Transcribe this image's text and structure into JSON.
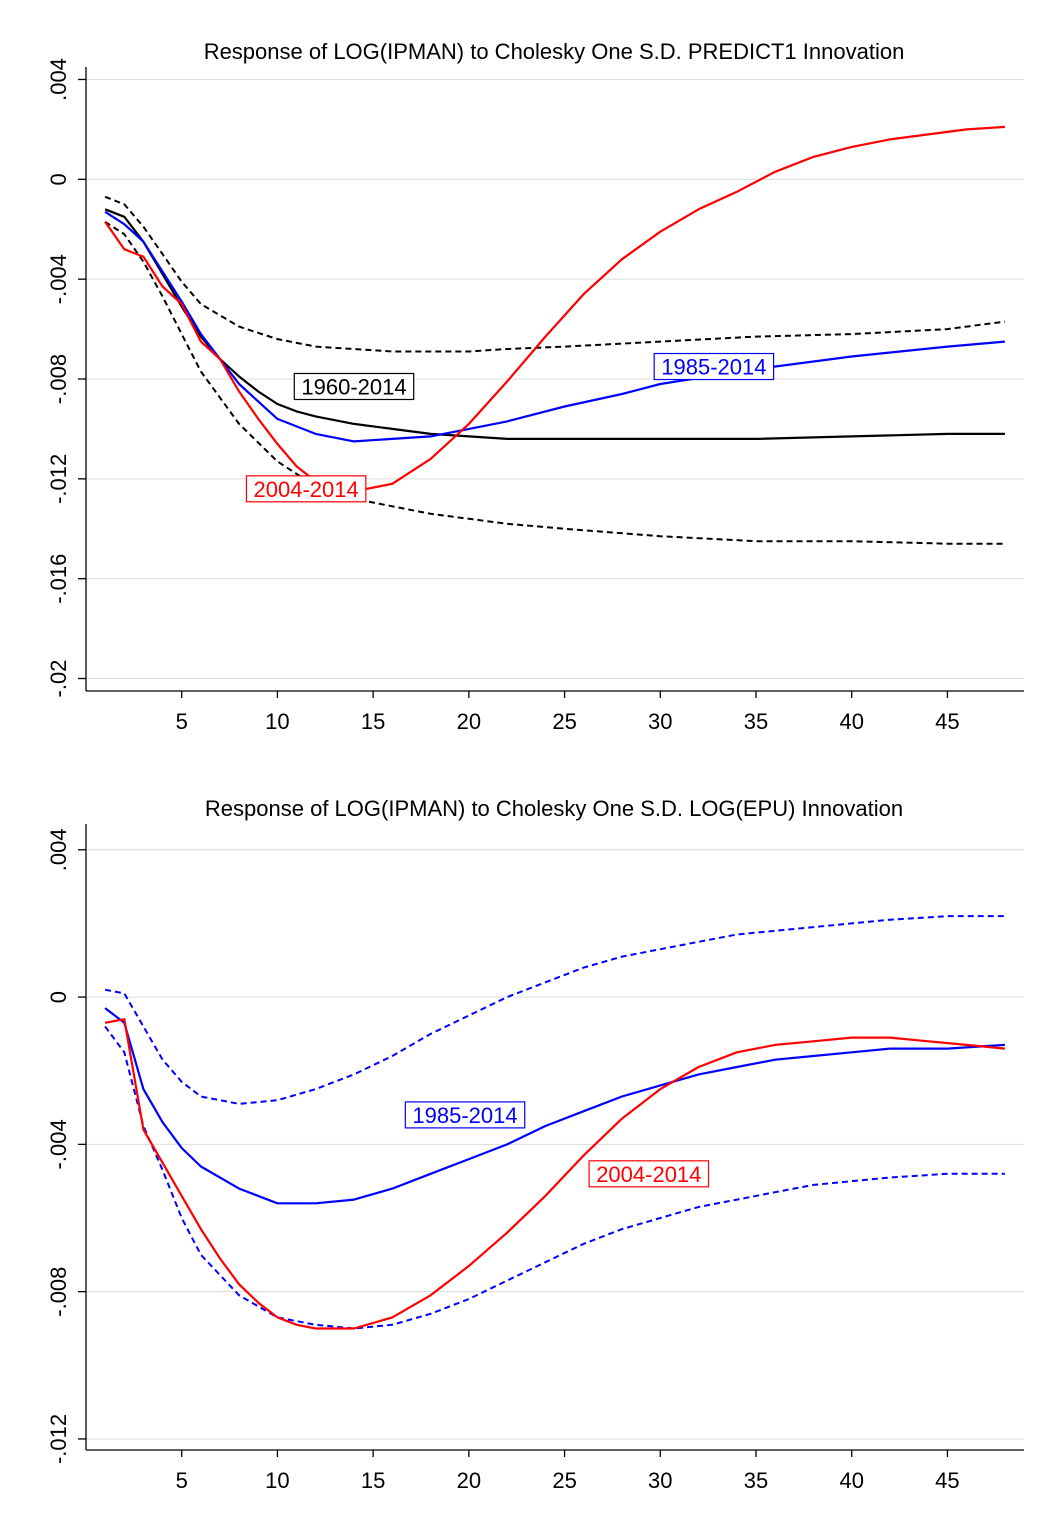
{
  "chart_data": [
    {
      "type": "line",
      "title": "Response of LOG(IPMAN) to Cholesky One S.D. PREDICT1 Innovation",
      "xlabel": "",
      "ylabel": "",
      "xlim": [
        0,
        49
      ],
      "ylim": [
        -0.0205,
        0.0045
      ],
      "x_ticks": [
        5,
        10,
        15,
        20,
        25,
        30,
        35,
        40,
        45
      ],
      "y_ticks": [
        0.004,
        0,
        -0.004,
        -0.008,
        -0.012,
        -0.016,
        -0.02
      ],
      "y_tick_labels": [
        ".004",
        "0",
        "-.004",
        "-.008",
        "-.012",
        "-.016",
        "-.02"
      ],
      "grid": "horizontal",
      "series": [
        {
          "name": "1960-2014",
          "color": "#000000",
          "style": "solid",
          "x": [
            1,
            2,
            3,
            4,
            5,
            6,
            7,
            8,
            9,
            10,
            11,
            12,
            14,
            16,
            18,
            20,
            22,
            25,
            30,
            35,
            40,
            45,
            48
          ],
          "y": [
            -0.0012,
            -0.0015,
            -0.0025,
            -0.0038,
            -0.0051,
            -0.0063,
            -0.0072,
            -0.0079,
            -0.0085,
            -0.009,
            -0.0093,
            -0.0095,
            -0.0098,
            -0.01,
            -0.0102,
            -0.0103,
            -0.0104,
            -0.0104,
            -0.0104,
            -0.0104,
            -0.0103,
            -0.0102,
            -0.0102
          ]
        },
        {
          "name": "",
          "color": "#000000",
          "style": "dashed",
          "x": [
            1,
            2,
            3,
            4,
            5,
            6,
            8,
            10,
            12,
            14,
            16,
            18,
            20,
            22,
            25,
            30,
            35,
            40,
            45,
            48
          ],
          "y": [
            -0.0007,
            -0.001,
            -0.0019,
            -0.003,
            -0.0041,
            -0.005,
            -0.0059,
            -0.0064,
            -0.0067,
            -0.0068,
            -0.0069,
            -0.0069,
            -0.0069,
            -0.0068,
            -0.0067,
            -0.0065,
            -0.0063,
            -0.0062,
            -0.006,
            -0.0057
          ]
        },
        {
          "name": "",
          "color": "#000000",
          "style": "dashed",
          "x": [
            1,
            2,
            3,
            4,
            5,
            6,
            8,
            10,
            12,
            14,
            16,
            18,
            20,
            22,
            25,
            30,
            35,
            40,
            45,
            48
          ],
          "y": [
            -0.0017,
            -0.0022,
            -0.0033,
            -0.0047,
            -0.0062,
            -0.0077,
            -0.0098,
            -0.0113,
            -0.0123,
            -0.0128,
            -0.0131,
            -0.0134,
            -0.0136,
            -0.0138,
            -0.014,
            -0.0143,
            -0.0145,
            -0.0145,
            -0.0146,
            -0.0146
          ]
        },
        {
          "name": "1985-2014",
          "color": "#0000ff",
          "style": "solid",
          "x": [
            1,
            2,
            3,
            4,
            5,
            6,
            8,
            10,
            12,
            14,
            16,
            18,
            20,
            22,
            25,
            28,
            30,
            35,
            40,
            45,
            48
          ],
          "y": [
            -0.0013,
            -0.0018,
            -0.0025,
            -0.0037,
            -0.0049,
            -0.0062,
            -0.0082,
            -0.0096,
            -0.0102,
            -0.0105,
            -0.0104,
            -0.0103,
            -0.01,
            -0.0097,
            -0.0091,
            -0.0086,
            -0.0082,
            -0.0076,
            -0.0071,
            -0.0067,
            -0.0065
          ]
        },
        {
          "name": "2004-2014",
          "color": "#ff0000",
          "style": "solid",
          "x": [
            1,
            2,
            3,
            4,
            5,
            6,
            7,
            8,
            9,
            10,
            11,
            12,
            14,
            16,
            18,
            20,
            22,
            24,
            26,
            28,
            30,
            32,
            34,
            36,
            38,
            40,
            42,
            44,
            46,
            48
          ],
          "y": [
            -0.0017,
            -0.0028,
            -0.0031,
            -0.0043,
            -0.005,
            -0.0065,
            -0.0072,
            -0.0085,
            -0.0096,
            -0.0106,
            -0.0115,
            -0.0121,
            -0.0125,
            -0.0122,
            -0.0112,
            -0.0098,
            -0.0081,
            -0.0063,
            -0.0046,
            -0.0032,
            -0.0021,
            -0.0012,
            -0.0005,
            0.0003,
            0.0009,
            0.0013,
            0.0016,
            0.0018,
            0.002,
            0.0021
          ]
        }
      ],
      "annotations": [
        {
          "text": "1960-2014",
          "x": 14,
          "y": -0.0083,
          "color": "#000000"
        },
        {
          "text": "1985-2014",
          "x": 32.8,
          "y": -0.0075,
          "color": "#0000ff"
        },
        {
          "text": "2004-2014",
          "x": 11.5,
          "y": -0.0124,
          "color": "#ff0000"
        }
      ]
    },
    {
      "type": "line",
      "title": "Response of LOG(IPMAN) to Cholesky One S.D. LOG(EPU) Innovation",
      "xlabel": "",
      "ylabel": "",
      "xlim": [
        0,
        49
      ],
      "ylim": [
        -0.0123,
        0.0047
      ],
      "x_ticks": [
        5,
        10,
        15,
        20,
        25,
        30,
        35,
        40,
        45
      ],
      "y_ticks": [
        0.004,
        0,
        -0.004,
        -0.008,
        -0.012
      ],
      "y_tick_labels": [
        ".004",
        "0",
        "-.004",
        "-.008",
        "-.012"
      ],
      "grid": "horizontal",
      "series": [
        {
          "name": "1985-2014",
          "color": "#0000ff",
          "style": "solid",
          "x": [
            1,
            2,
            3,
            4,
            5,
            6,
            8,
            10,
            12,
            14,
            16,
            18,
            20,
            22,
            24,
            26,
            28,
            30,
            32,
            34,
            36,
            38,
            40,
            42,
            45,
            48
          ],
          "y": [
            -0.0003,
            -0.0007,
            -0.0025,
            -0.0034,
            -0.0041,
            -0.0046,
            -0.0052,
            -0.0056,
            -0.0056,
            -0.0055,
            -0.0052,
            -0.0048,
            -0.0044,
            -0.004,
            -0.0035,
            -0.0031,
            -0.0027,
            -0.0024,
            -0.0021,
            -0.0019,
            -0.0017,
            -0.0016,
            -0.0015,
            -0.0014,
            -0.0014,
            -0.0013
          ]
        },
        {
          "name": "",
          "color": "#0000ff",
          "style": "dashed",
          "x": [
            1,
            2,
            3,
            4,
            5,
            6,
            8,
            10,
            12,
            14,
            16,
            18,
            20,
            22,
            24,
            26,
            28,
            30,
            32,
            34,
            36,
            38,
            40,
            42,
            45,
            48
          ],
          "y": [
            0.0002,
            0.0001,
            -0.0008,
            -0.0017,
            -0.0023,
            -0.0027,
            -0.0029,
            -0.0028,
            -0.0025,
            -0.0021,
            -0.0016,
            -0.001,
            -0.0005,
            0.0,
            0.0004,
            0.0008,
            0.0011,
            0.0013,
            0.0015,
            0.0017,
            0.0018,
            0.0019,
            0.002,
            0.0021,
            0.0022,
            0.0022
          ]
        },
        {
          "name": "",
          "color": "#0000ff",
          "style": "dashed",
          "x": [
            1,
            2,
            3,
            4,
            5,
            6,
            8,
            10,
            12,
            14,
            16,
            18,
            20,
            22,
            24,
            26,
            28,
            30,
            32,
            34,
            36,
            38,
            40,
            42,
            45,
            48
          ],
          "y": [
            -0.0008,
            -0.0015,
            -0.0035,
            -0.0047,
            -0.006,
            -0.007,
            -0.0081,
            -0.0087,
            -0.0089,
            -0.009,
            -0.0089,
            -0.0086,
            -0.0082,
            -0.0077,
            -0.0072,
            -0.0067,
            -0.0063,
            -0.006,
            -0.0057,
            -0.0055,
            -0.0053,
            -0.0051,
            -0.005,
            -0.0049,
            -0.0048,
            -0.0048
          ]
        },
        {
          "name": "2004-2014",
          "color": "#ff0000",
          "style": "solid",
          "x": [
            1,
            2,
            3,
            4,
            5,
            6,
            7,
            8,
            9,
            10,
            11,
            12,
            13,
            14,
            16,
            18,
            20,
            22,
            24,
            26,
            28,
            30,
            32,
            34,
            36,
            38,
            40,
            42,
            44,
            46,
            48
          ],
          "y": [
            -0.0007,
            -0.0006,
            -0.0036,
            -0.0045,
            -0.0054,
            -0.0063,
            -0.0071,
            -0.0078,
            -0.0083,
            -0.0087,
            -0.0089,
            -0.009,
            -0.009,
            -0.009,
            -0.0087,
            -0.0081,
            -0.0073,
            -0.0064,
            -0.0054,
            -0.0043,
            -0.0033,
            -0.0025,
            -0.0019,
            -0.0015,
            -0.0013,
            -0.0012,
            -0.0011,
            -0.0011,
            -0.0012,
            -0.0013,
            -0.0014
          ]
        }
      ],
      "annotations": [
        {
          "text": "1985-2014",
          "x": 19.8,
          "y": -0.0032,
          "color": "#0000ff"
        },
        {
          "text": "2004-2014",
          "x": 29.4,
          "y": -0.0048,
          "color": "#ff0000"
        }
      ]
    }
  ]
}
